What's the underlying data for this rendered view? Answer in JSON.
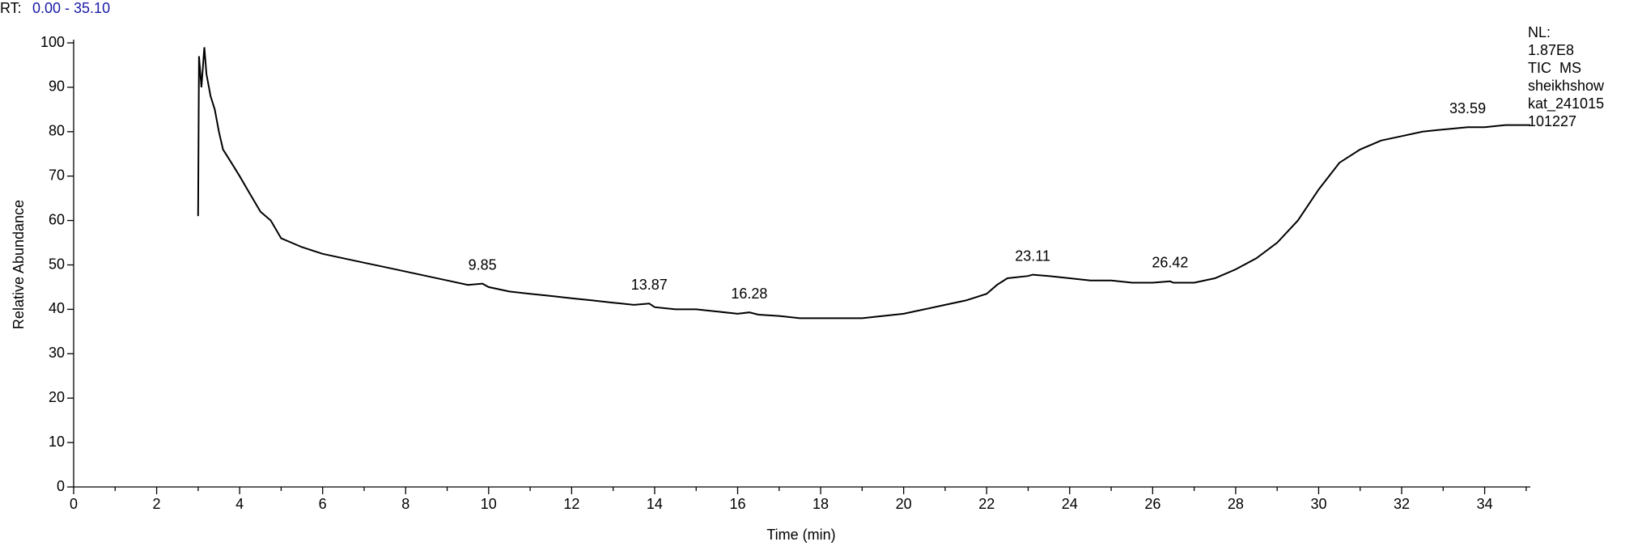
{
  "chart_data": {
    "type": "line",
    "rt_label": "RT:",
    "rt_range": "0.00 - 35.10",
    "xlabel": "Time (min)",
    "ylabel": "Relative Abundance",
    "side_labels": [
      "NL:",
      "1.87E8",
      "TIC  MS",
      "sheikhshow",
      "kat_241015",
      "101227"
    ],
    "xlim": [
      0,
      35.1
    ],
    "xticks": [
      0,
      2,
      4,
      6,
      8,
      10,
      12,
      14,
      16,
      18,
      20,
      22,
      24,
      26,
      28,
      30,
      32,
      34
    ],
    "xminorticks": [
      1,
      3,
      5,
      7,
      9,
      11,
      13,
      15,
      17,
      19,
      21,
      23,
      25,
      27,
      29,
      31,
      33,
      35
    ],
    "ylim": [
      0,
      100
    ],
    "yticks": [
      0,
      10,
      20,
      30,
      40,
      50,
      60,
      70,
      80,
      90,
      100
    ],
    "annotations": [
      9.85,
      13.87,
      16.28,
      23.11,
      26.42,
      33.59
    ],
    "x": [
      3.0,
      3.02,
      3.08,
      3.15,
      3.2,
      3.3,
      3.4,
      3.5,
      3.6,
      3.8,
      4.0,
      4.25,
      4.5,
      4.75,
      5.0,
      5.25,
      5.5,
      6.0,
      6.5,
      7.0,
      7.5,
      8.0,
      8.5,
      9.0,
      9.5,
      9.85,
      10.0,
      10.5,
      11.0,
      11.5,
      12.0,
      12.5,
      13.0,
      13.5,
      13.87,
      14.0,
      14.5,
      15.0,
      15.5,
      16.0,
      16.28,
      16.5,
      17.0,
      17.5,
      18.0,
      18.5,
      19.0,
      19.5,
      20.0,
      20.5,
      21.0,
      21.5,
      22.0,
      22.25,
      22.5,
      23.0,
      23.11,
      23.5,
      24.0,
      24.5,
      25.0,
      25.5,
      26.0,
      26.42,
      26.5,
      27.0,
      27.5,
      28.0,
      28.5,
      29.0,
      29.5,
      30.0,
      30.5,
      31.0,
      31.5,
      32.0,
      32.5,
      33.0,
      33.59,
      34.0,
      34.5,
      35.1
    ],
    "series": [
      {
        "name": "TIC",
        "color": "#000000",
        "values": [
          61,
          97,
          90,
          99,
          93,
          88,
          85,
          80,
          76,
          73,
          70,
          66,
          62,
          60,
          56,
          55,
          54,
          52.5,
          51.5,
          50.5,
          49.5,
          48.5,
          47.5,
          46.5,
          45.5,
          45.8,
          45,
          44,
          43.5,
          43,
          42.5,
          42,
          41.5,
          41,
          41.3,
          40.5,
          40,
          40,
          39.5,
          39,
          39.3,
          38.8,
          38.5,
          38,
          38,
          38,
          38,
          38.5,
          39,
          40,
          41,
          42,
          43.5,
          45.5,
          47,
          47.5,
          47.8,
          47.5,
          47,
          46.5,
          46.5,
          46,
          46,
          46.3,
          46,
          46,
          47,
          49,
          51.5,
          55,
          60,
          67,
          73,
          76,
          78,
          79,
          80,
          80.5,
          81,
          81,
          81.5,
          81.5
        ]
      }
    ]
  }
}
